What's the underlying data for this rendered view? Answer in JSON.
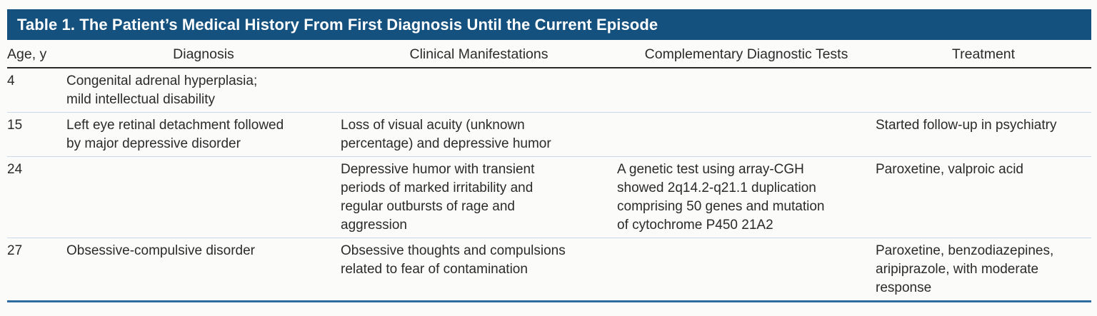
{
  "table": {
    "title": "Table 1. The Patient’s Medical History From First Diagnosis Until the Current Episode",
    "columns": [
      "Age, y",
      "Diagnosis",
      "Clinical Manifestations",
      "Complementary Diagnostic Tests",
      "Treatment"
    ],
    "rows": [
      {
        "cells": [
          "4",
          "Congenital adrenal hyperplasia;\nmild intellectual disability",
          "",
          "",
          ""
        ]
      },
      {
        "cells": [
          "15",
          "Left eye retinal detachment followed\nby major depressive disorder",
          "Loss of visual acuity (unknown\npercentage) and depressive humor",
          "",
          "Started follow-up in psychiatry"
        ]
      },
      {
        "cells": [
          "24",
          "",
          "Depressive humor with transient\nperiods of marked irritability and\nregular outbursts of rage and\naggression",
          "A genetic test using array-CGH\nshowed 2q14.2-q21.1 duplication\ncomprising 50 genes and mutation\nof cytochrome P450 21A2",
          "Paroxetine, valproic acid"
        ]
      },
      {
        "cells": [
          "27",
          "Obsessive-compulsive disorder",
          "Obsessive thoughts and compulsions\nrelated to fear of contamination",
          "",
          "Paroxetine, benzodiazepines,\naripiprazole, with moderate\nresponse"
        ]
      }
    ],
    "colors": {
      "title_bar_background": "#15517e",
      "title_text": "#ffffff",
      "header_rule": "#2b2b2b",
      "row_separator": "#c9d9e9",
      "bottom_rule": "#2e6b9e",
      "body_text": "#2b2b2b",
      "page_background": "#fbfbf9"
    }
  }
}
